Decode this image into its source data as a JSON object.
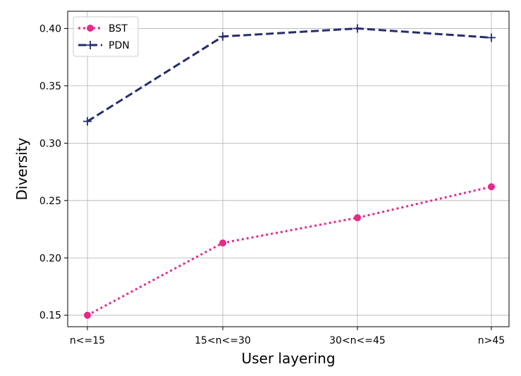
{
  "chart_data": {
    "type": "line",
    "categories": [
      "n<=15",
      "15<n<=30",
      "30<n<=45",
      "n>45"
    ],
    "series": [
      {
        "name": "BST",
        "values": [
          0.15,
          0.213,
          0.235,
          0.262
        ],
        "color": "#e7298a",
        "linestyle": "dotted",
        "marker": "circle"
      },
      {
        "name": "PDN",
        "values": [
          0.319,
          0.393,
          0.4,
          0.392
        ],
        "color": "#262c6e",
        "linestyle": "dashed",
        "marker": "plus"
      }
    ],
    "title": "",
    "xlabel": "User layering",
    "ylabel": "Diversity",
    "ylim": [
      0.14,
      0.415
    ],
    "yticks": [
      "0.15",
      "0.20",
      "0.25",
      "0.30",
      "0.35",
      "0.40"
    ],
    "grid": true,
    "legend": "top-left"
  }
}
